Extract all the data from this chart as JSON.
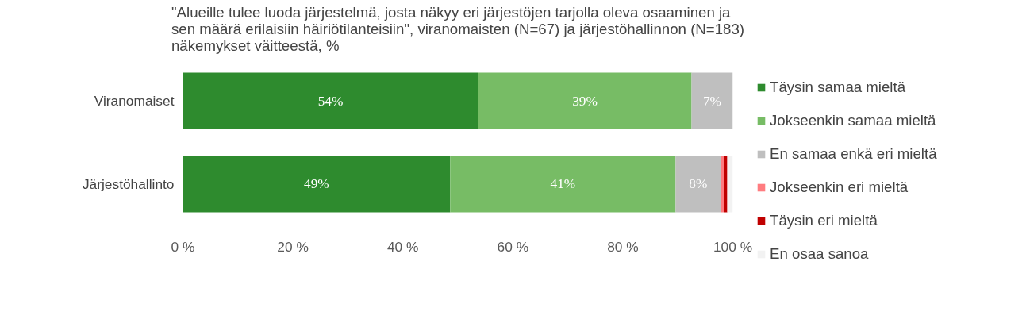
{
  "chart_data": {
    "type": "bar",
    "orientation": "horizontal",
    "stacked": true,
    "title": "\"Alueille tulee luoda järjestelmä, josta näkyy eri järjestöjen tarjolla oleva osaaminen ja sen määrä erilaisiin häiriötilanteisiin\", viranomaisten (N=67) ja järjestöhallinnon (N=183) näkemykset väitteestä, %",
    "categories": [
      "Viranomaiset",
      "Järjestöhallinto"
    ],
    "series": [
      {
        "name": "Täysin samaa mieltä",
        "color": "#2e8b2e",
        "values": [
          53.7,
          48.6
        ],
        "value_labels": [
          "54%",
          "49%"
        ]
      },
      {
        "name": "Jokseenkin samaa mieltä",
        "color": "#77bc65",
        "values": [
          38.8,
          41.0
        ],
        "value_labels": [
          "39%",
          "41%"
        ]
      },
      {
        "name": "En samaa enkä eri mieltä",
        "color": "#bfbfbf",
        "values": [
          7.5,
          8.2
        ],
        "value_labels": [
          "7%",
          "8%"
        ]
      },
      {
        "name": "Jokseenkin eri mieltä",
        "color": "#ff7c80",
        "values": [
          null,
          0.6
        ],
        "value_labels": [
          null,
          null
        ]
      },
      {
        "name": "Täysin eri mieltä",
        "color": "#c00000",
        "values": [
          null,
          0.6
        ],
        "value_labels": [
          null,
          null
        ]
      },
      {
        "name": "En osaa sanoa",
        "color": "#f2f2f2",
        "values": [
          null,
          1.0
        ],
        "value_labels": [
          null,
          null
        ]
      }
    ],
    "xlim": [
      0,
      100
    ],
    "xticks": [
      {
        "value": 0,
        "label": "0 %"
      },
      {
        "value": 20,
        "label": "20 %"
      },
      {
        "value": 40,
        "label": "40 %"
      },
      {
        "value": 60,
        "label": "60 %"
      },
      {
        "value": 80,
        "label": "80 %"
      },
      {
        "value": 100,
        "label": "100 %"
      }
    ],
    "legend": "right",
    "grid": false
  }
}
